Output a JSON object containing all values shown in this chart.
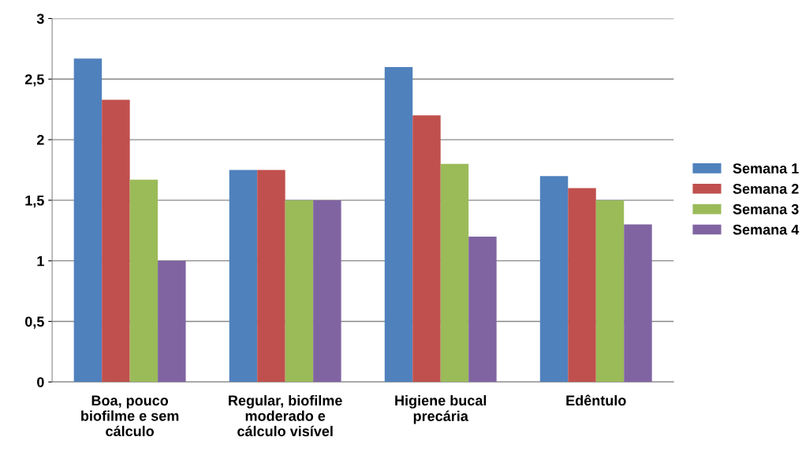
{
  "chart_data": {
    "type": "bar",
    "categories": [
      "Boa, pouco\nbiofilme e sem\ncálculo",
      "Regular, biofilme\nmoderado e\ncálculo visível",
      "Higiene bucal\nprecária",
      "Edêntulo"
    ],
    "series": [
      {
        "name": "Semana 1",
        "color": "#4f81bd",
        "values": [
          2.67,
          1.75,
          2.6,
          1.7
        ]
      },
      {
        "name": "Semana 2",
        "color": "#c0504d",
        "values": [
          2.33,
          1.75,
          2.2,
          1.6
        ]
      },
      {
        "name": "Semana 3",
        "color": "#9bbb59",
        "values": [
          1.67,
          1.5,
          1.8,
          1.5
        ]
      },
      {
        "name": "Semana 4",
        "color": "#8064a2",
        "values": [
          1.0,
          1.5,
          1.2,
          1.3
        ]
      }
    ],
    "ylim": [
      0,
      3
    ],
    "yticks": [
      0,
      {
        "value": 0.5,
        "label": "0,5"
      },
      1,
      {
        "value": 1.5,
        "label": "1,5"
      },
      2,
      {
        "value": 2.5,
        "label": "2,5"
      },
      3
    ],
    "grid": "y",
    "legend": "right"
  }
}
